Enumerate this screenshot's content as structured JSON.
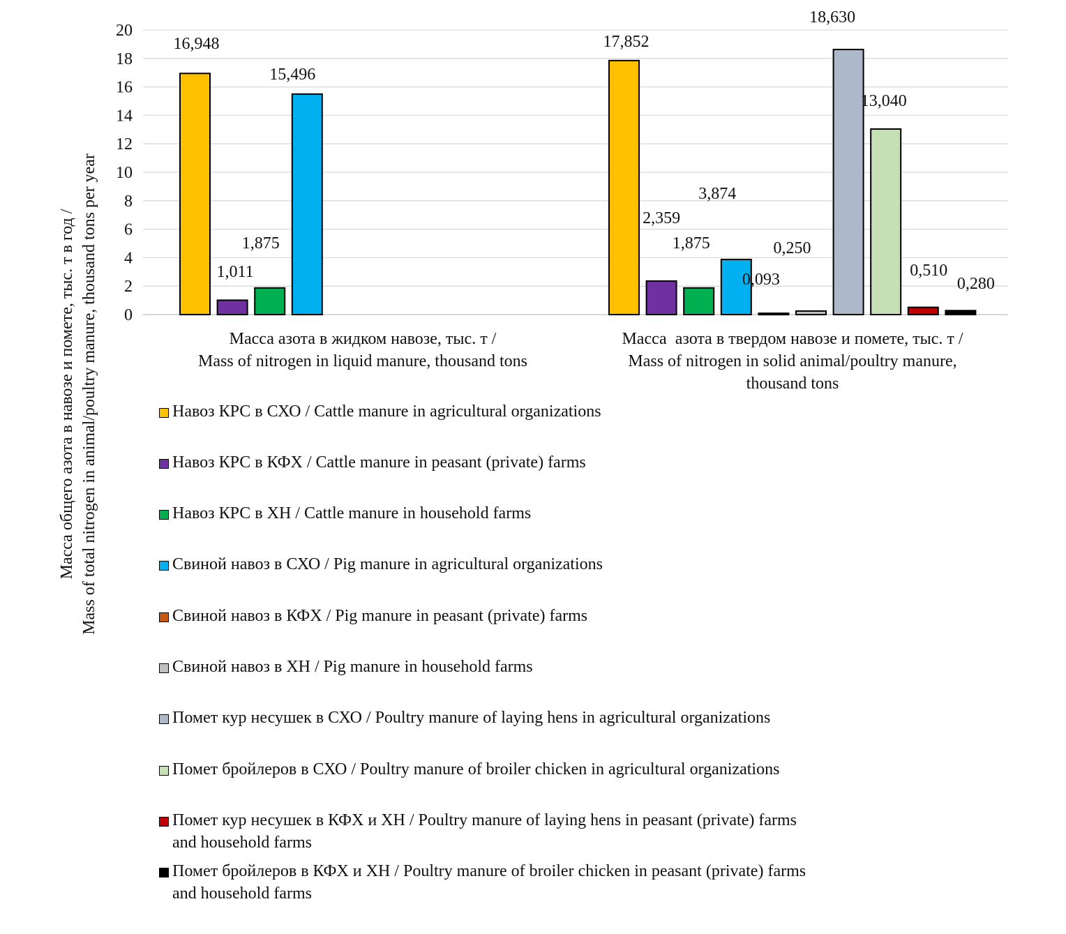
{
  "chart_data": {
    "type": "bar",
    "title": "",
    "xlabel": "",
    "ylabel": "Масса общего азота в навозе и помете, тыс. т в год /\nMass of total nitrogen in animal/poultry manure, thousand tons per year",
    "ylim": [
      0,
      20
    ],
    "yticks": [
      "0",
      "2",
      "4",
      "6",
      "8",
      "10",
      "12",
      "14",
      "16",
      "18",
      "20"
    ],
    "grid": true,
    "legend_position": "bottom",
    "categories": [
      "Масса азота в жидком навозе, тыс. т /\nMass of nitrogen in liquid manure, thousand tons",
      "Масса  азота в твердом навозе и помете, тыс. т /\nMass of nitrogen in solid animal/poultry manure,\nthousand tons"
    ],
    "series": [
      {
        "name": "Навоз КРС в СХО / Cattle manure in agricultural organizations",
        "color": "#FFC000",
        "values": [
          16.948,
          17.852
        ],
        "labels": [
          "16,948",
          "17,852"
        ]
      },
      {
        "name": "Навоз КРС в КФХ / Cattle manure in peasant (private) farms",
        "color": "#7030A0",
        "values": [
          1.011,
          2.359
        ],
        "labels": [
          "1,011",
          "2,359"
        ]
      },
      {
        "name": "Навоз КРС в ХН / Cattle manure in household farms",
        "color": "#00B050",
        "values": [
          1.875,
          1.875
        ],
        "labels": [
          "1,875",
          "1,875"
        ]
      },
      {
        "name": "Свиной навоз в СХО / Pig manure in agricultural organizations",
        "color": "#00B0F0",
        "values": [
          15.496,
          3.874
        ],
        "labels": [
          "15,496",
          "3,874"
        ]
      },
      {
        "name": "Свиной навоз в КФХ / Pig manure in peasant (private) farms",
        "color": "#C55A11",
        "values": [
          null,
          0.093
        ],
        "labels": [
          null,
          "0,093"
        ]
      },
      {
        "name": "Свиной навоз в ХН / Pig manure in household farms",
        "color": "#BFBFBF",
        "values": [
          null,
          0.25
        ],
        "labels": [
          null,
          "0,250"
        ]
      },
      {
        "name": "Помет кур несушек в СХО / Poultry manure of laying hens in agricultural organizations",
        "color": "#ADB9CA",
        "values": [
          null,
          18.63
        ],
        "labels": [
          null,
          "18,630"
        ]
      },
      {
        "name": "Помет бройлеров в СХО / Poultry manure of broiler chicken in agricultural organizations",
        "color": "#C5E0B4",
        "values": [
          null,
          13.04
        ],
        "labels": [
          null,
          "13,040"
        ]
      },
      {
        "name": "Помет кур несушек в КФХ и ХН / Poultry manure of laying hens in peasant (private) farms\nand household farms",
        "color": "#C00000",
        "values": [
          null,
          0.51
        ],
        "labels": [
          null,
          "0,510"
        ]
      },
      {
        "name": "Помет бройлеров в КФХ и ХН / Poultry manure of broiler chicken in peasant (private) farms\nand household farms",
        "color": "#000000",
        "values": [
          null,
          0.28
        ],
        "labels": [
          null,
          "0,280"
        ]
      }
    ]
  }
}
